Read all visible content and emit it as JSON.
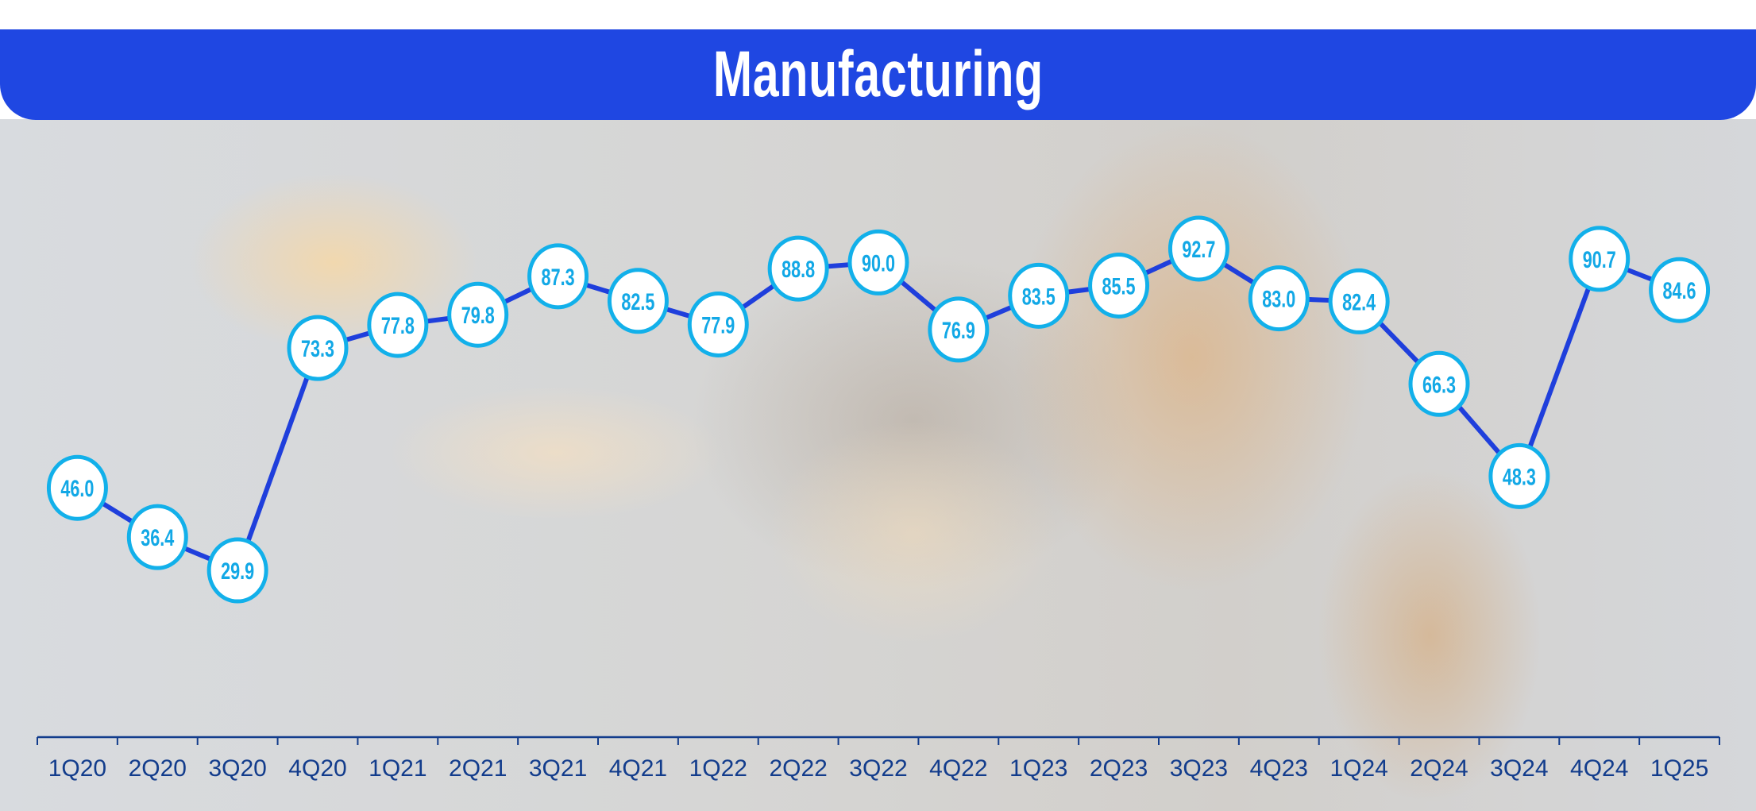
{
  "chart_data": {
    "type": "line",
    "title": "Manufacturing",
    "categories": [
      "1Q20",
      "2Q20",
      "3Q20",
      "4Q20",
      "1Q21",
      "2Q21",
      "3Q21",
      "4Q21",
      "1Q22",
      "2Q22",
      "3Q22",
      "4Q22",
      "1Q23",
      "2Q23",
      "3Q23",
      "4Q23",
      "1Q24",
      "2Q24",
      "3Q24",
      "4Q24",
      "1Q25"
    ],
    "values": [
      46.0,
      36.4,
      29.9,
      73.3,
      77.8,
      79.8,
      87.3,
      82.5,
      77.9,
      88.8,
      90.0,
      76.9,
      83.5,
      85.5,
      92.7,
      83.0,
      82.4,
      66.3,
      48.3,
      90.7,
      84.6
    ],
    "data_labels": [
      "46.0",
      "36.4",
      "29.9",
      "73.3",
      "77.8",
      "79.8",
      "87.3",
      "82.5",
      "77.9",
      "88.8",
      "90.0",
      "76.9",
      "83.5",
      "85.5",
      "92.7",
      "83.0",
      "82.4",
      "66.3",
      "48.3",
      "90.7",
      "84.6"
    ],
    "xlabel": "",
    "ylabel": "",
    "grid": false,
    "y_axis_shown": false,
    "colors": {
      "title_bar": "#1f47e2",
      "line": "#1f3fdc",
      "marker_stroke": "#12b0ea",
      "marker_fill": "#ffffff",
      "label": "#12a8e6",
      "axis": "#123c8c"
    }
  }
}
